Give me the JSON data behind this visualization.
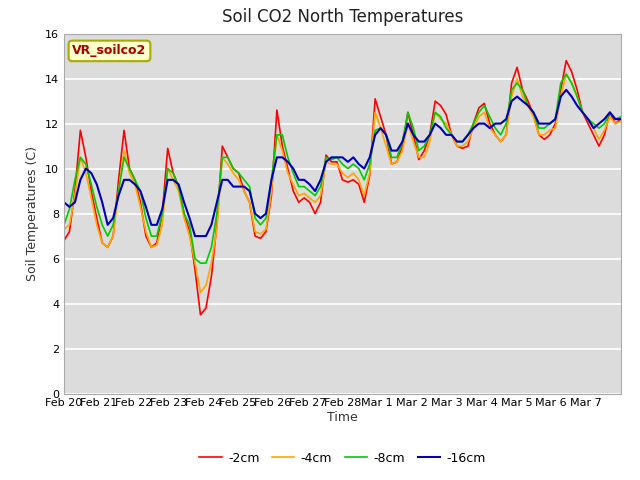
{
  "title": "Soil CO2 North Temperatures",
  "ylabel": "Soil Temperatures (C)",
  "xlabel": "Time",
  "legend_label": "VR_soilco2",
  "ylim": [
    0,
    16
  ],
  "plot_bg": "#dcdcdc",
  "fig_bg": "#ffffff",
  "line_colors": {
    "-2cm": "#ff0000",
    "-4cm": "#ffa500",
    "-8cm": "#00cc00",
    "-16cm": "#0000bb"
  },
  "xtick_labels": [
    "Feb 20",
    "Feb 21",
    "Feb 22",
    "Feb 23",
    "Feb 24",
    "Feb 25",
    "Feb 26",
    "Feb 27",
    "Feb 28",
    "Mar 1",
    "Mar 2",
    "Mar 3",
    "Mar 4",
    "Mar 5",
    "Mar 6",
    "Mar 7"
  ],
  "y_2cm": [
    6.8,
    7.2,
    9.0,
    11.7,
    10.5,
    9.0,
    7.8,
    6.7,
    6.5,
    7.0,
    9.5,
    11.7,
    10.0,
    9.5,
    8.5,
    7.0,
    6.5,
    6.7,
    8.0,
    10.9,
    9.8,
    9.2,
    8.0,
    7.2,
    5.5,
    3.5,
    3.8,
    5.2,
    7.5,
    11.0,
    10.5,
    10.0,
    9.8,
    9.0,
    8.5,
    7.0,
    6.9,
    7.2,
    8.8,
    12.6,
    11.0,
    10.0,
    9.0,
    8.5,
    8.7,
    8.5,
    8.0,
    8.5,
    10.6,
    10.3,
    10.3,
    9.5,
    9.4,
    9.5,
    9.3,
    8.5,
    9.7,
    13.1,
    12.3,
    11.5,
    10.2,
    10.3,
    11.0,
    12.5,
    11.5,
    10.4,
    10.8,
    11.5,
    13.0,
    12.8,
    12.4,
    11.5,
    11.0,
    10.9,
    11.0,
    12.0,
    12.7,
    12.9,
    12.0,
    11.5,
    11.2,
    11.5,
    13.8,
    14.5,
    13.5,
    13.0,
    12.4,
    11.5,
    11.3,
    11.5,
    12.0,
    13.5,
    14.8,
    14.3,
    13.5,
    12.5,
    12.0,
    11.5,
    11.0,
    11.5,
    12.5,
    12.0,
    12.2
  ],
  "y_4cm": [
    7.3,
    7.5,
    8.8,
    10.5,
    9.8,
    8.7,
    7.5,
    6.7,
    6.5,
    7.0,
    9.0,
    10.8,
    9.8,
    9.3,
    8.3,
    7.2,
    6.5,
    6.6,
    7.5,
    10.0,
    9.5,
    9.0,
    7.8,
    7.0,
    5.8,
    4.5,
    4.8,
    5.8,
    7.3,
    10.5,
    10.2,
    9.8,
    9.5,
    9.0,
    8.5,
    7.2,
    7.1,
    7.3,
    9.0,
    11.5,
    10.8,
    9.8,
    9.3,
    8.8,
    8.9,
    8.7,
    8.5,
    8.8,
    10.3,
    10.2,
    10.2,
    9.8,
    9.6,
    9.8,
    9.5,
    8.8,
    9.8,
    12.5,
    11.8,
    11.0,
    10.2,
    10.3,
    10.8,
    12.0,
    11.2,
    10.5,
    10.5,
    11.2,
    12.5,
    12.2,
    12.0,
    11.5,
    11.0,
    11.0,
    11.2,
    11.8,
    12.3,
    12.5,
    11.8,
    11.5,
    11.2,
    11.5,
    13.2,
    14.0,
    13.2,
    12.8,
    12.3,
    11.5,
    11.5,
    11.7,
    11.8,
    13.2,
    14.2,
    13.8,
    13.2,
    12.5,
    12.2,
    11.8,
    11.3,
    11.7,
    12.3,
    12.0,
    12.1
  ],
  "y_8cm": [
    7.5,
    8.2,
    9.5,
    10.5,
    10.2,
    9.3,
    8.3,
    7.5,
    7.0,
    7.5,
    9.0,
    10.5,
    10.0,
    9.5,
    9.0,
    7.8,
    7.0,
    7.0,
    8.0,
    10.0,
    9.8,
    9.2,
    8.0,
    7.5,
    6.0,
    5.8,
    5.8,
    6.5,
    8.0,
    10.5,
    10.5,
    10.0,
    9.8,
    9.5,
    9.2,
    7.8,
    7.5,
    7.8,
    9.5,
    11.5,
    11.5,
    10.5,
    9.8,
    9.2,
    9.2,
    9.0,
    8.8,
    9.2,
    10.5,
    10.4,
    10.5,
    10.2,
    10.0,
    10.2,
    10.0,
    9.5,
    10.2,
    11.7,
    11.8,
    11.5,
    10.5,
    10.5,
    11.2,
    12.5,
    11.8,
    10.8,
    11.0,
    11.5,
    12.5,
    12.3,
    11.8,
    11.5,
    11.2,
    11.2,
    11.5,
    12.0,
    12.5,
    12.8,
    12.3,
    11.8,
    11.5,
    12.0,
    13.5,
    13.8,
    13.5,
    12.8,
    12.5,
    11.8,
    11.8,
    12.0,
    12.2,
    13.8,
    14.2,
    13.8,
    13.2,
    12.5,
    12.2,
    12.0,
    11.8,
    12.0,
    12.5,
    12.2,
    12.3
  ],
  "y_16cm": [
    8.5,
    8.3,
    8.5,
    9.5,
    10.0,
    9.8,
    9.3,
    8.5,
    7.5,
    7.8,
    8.8,
    9.5,
    9.5,
    9.3,
    9.0,
    8.3,
    7.5,
    7.5,
    8.2,
    9.5,
    9.5,
    9.3,
    8.5,
    7.8,
    7.0,
    7.0,
    7.0,
    7.5,
    8.5,
    9.5,
    9.5,
    9.2,
    9.2,
    9.2,
    9.0,
    8.0,
    7.8,
    8.0,
    9.5,
    10.5,
    10.5,
    10.3,
    10.0,
    9.5,
    9.5,
    9.3,
    9.0,
    9.5,
    10.3,
    10.5,
    10.5,
    10.5,
    10.3,
    10.5,
    10.2,
    10.0,
    10.5,
    11.5,
    11.8,
    11.5,
    10.8,
    10.8,
    11.2,
    12.0,
    11.5,
    11.2,
    11.2,
    11.5,
    12.0,
    11.8,
    11.5,
    11.5,
    11.2,
    11.2,
    11.5,
    11.8,
    12.0,
    12.0,
    11.8,
    12.0,
    12.0,
    12.2,
    13.0,
    13.2,
    13.0,
    12.8,
    12.5,
    12.0,
    12.0,
    12.0,
    12.2,
    13.2,
    13.5,
    13.2,
    12.8,
    12.5,
    12.2,
    11.8,
    12.0,
    12.2,
    12.5,
    12.2,
    12.2
  ]
}
